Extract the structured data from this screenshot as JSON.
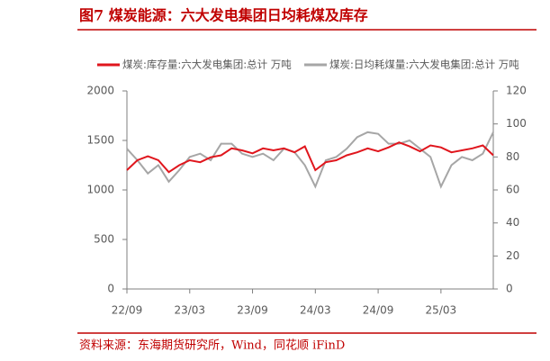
{
  "chart_data": {
    "type": "line",
    "title": "图7   煤炭能源：六大发电集团日均耗煤及库存",
    "source": "资料来源：东海期货研究所，Wind，同花顺 iFinD",
    "categories": [
      "22/09",
      null,
      null,
      null,
      null,
      null,
      "23/03",
      null,
      null,
      null,
      null,
      null,
      "23/09",
      null,
      null,
      null,
      null,
      null,
      "24/03",
      null,
      null,
      null,
      null,
      null,
      "24/09",
      null,
      null,
      null,
      null,
      null,
      "25/03",
      null,
      null,
      null,
      null,
      null
    ],
    "series": [
      {
        "name": "煤炭:库存量:六大发电集团:总计 万吨",
        "color": "#e0161d",
        "axis": "y",
        "values": [
          1200,
          1300,
          1340,
          1300,
          1180,
          1250,
          1300,
          1280,
          1330,
          1350,
          1420,
          1400,
          1370,
          1420,
          1400,
          1420,
          1380,
          1440,
          1200,
          1280,
          1300,
          1350,
          1380,
          1420,
          1390,
          1430,
          1480,
          1440,
          1390,
          1450,
          1430,
          1380,
          1400,
          1420,
          1450,
          1350
        ]
      },
      {
        "name": "煤炭:日均耗煤量:六大发电集团:总计 万吨",
        "color": "#a6a6a6",
        "axis": "y2",
        "values": [
          85,
          78,
          70,
          75,
          65,
          72,
          80,
          82,
          78,
          88,
          88,
          82,
          80,
          82,
          78,
          85,
          83,
          75,
          62,
          78,
          80,
          85,
          92,
          95,
          94,
          88,
          88,
          90,
          85,
          80,
          62,
          75,
          80,
          78,
          82,
          95
        ]
      }
    ],
    "ylim": [
      0,
      2000
    ],
    "yticks": [
      0,
      500,
      1000,
      1500,
      2000
    ],
    "y2lim": [
      0,
      120
    ],
    "y2ticks": [
      0,
      20,
      40,
      60,
      80,
      100,
      120
    ]
  }
}
